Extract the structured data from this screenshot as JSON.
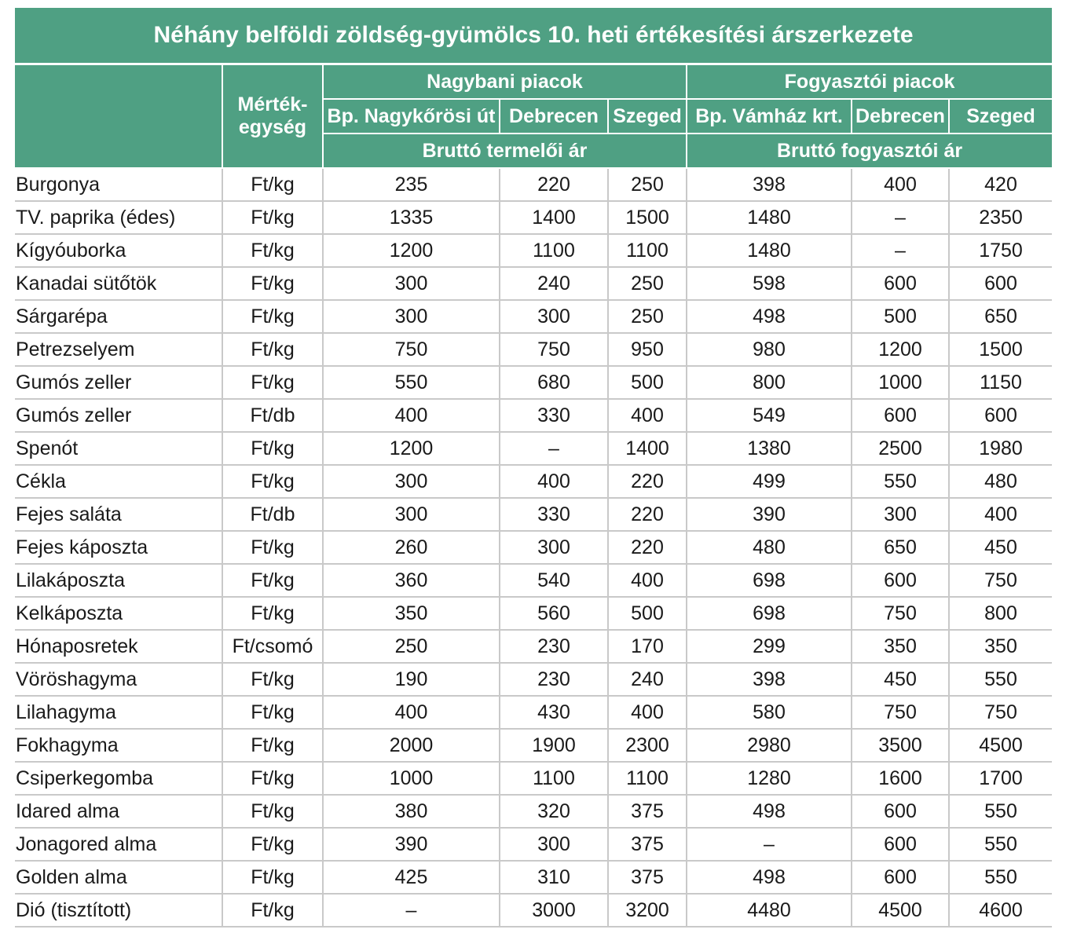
{
  "title": "Néhány belföldi zöldség-gyümölcs 10. heti értékesítési árszerkezete",
  "headers": {
    "unit_col": "Mérték-egység",
    "wholesale_group": "Nagybani piacok",
    "consumer_group": "Fogyasztói piacok",
    "wholesale_markets": [
      "Bp. Nagykőrösi út",
      "Debrecen",
      "Szeged"
    ],
    "consumer_markets": [
      "Bp. Vámház krt.",
      "Debrecen",
      "Szeged"
    ],
    "wholesale_price": "Bruttó termelői ár",
    "consumer_price": "Bruttó fogyasztói ár"
  },
  "rows": [
    {
      "name": "Burgonya",
      "unit": "Ft/kg",
      "v": [
        "235",
        "220",
        "250",
        "398",
        "400",
        "420"
      ]
    },
    {
      "name": "TV. paprika (édes)",
      "unit": "Ft/kg",
      "v": [
        "1335",
        "1400",
        "1500",
        "1480",
        "–",
        "2350"
      ]
    },
    {
      "name": "Kígyóuborka",
      "unit": "Ft/kg",
      "v": [
        "1200",
        "1100",
        "1100",
        "1480",
        "–",
        "1750"
      ]
    },
    {
      "name": "Kanadai sütőtök",
      "unit": "Ft/kg",
      "v": [
        "300",
        "240",
        "250",
        "598",
        "600",
        "600"
      ]
    },
    {
      "name": "Sárgarépa",
      "unit": "Ft/kg",
      "v": [
        "300",
        "300",
        "250",
        "498",
        "500",
        "650"
      ]
    },
    {
      "name": "Petrezselyem",
      "unit": "Ft/kg",
      "v": [
        "750",
        "750",
        "950",
        "980",
        "1200",
        "1500"
      ]
    },
    {
      "name": "Gumós zeller",
      "unit": "Ft/kg",
      "v": [
        "550",
        "680",
        "500",
        "800",
        "1000",
        "1150"
      ]
    },
    {
      "name": "Gumós zeller",
      "unit": "Ft/db",
      "v": [
        "400",
        "330",
        "400",
        "549",
        "600",
        "600"
      ]
    },
    {
      "name": "Spenót",
      "unit": "Ft/kg",
      "v": [
        "1200",
        "–",
        "1400",
        "1380",
        "2500",
        "1980"
      ]
    },
    {
      "name": "Cékla",
      "unit": "Ft/kg",
      "v": [
        "300",
        "400",
        "220",
        "499",
        "550",
        "480"
      ]
    },
    {
      "name": "Fejes saláta",
      "unit": "Ft/db",
      "v": [
        "300",
        "330",
        "220",
        "390",
        "300",
        "400"
      ]
    },
    {
      "name": "Fejes káposzta",
      "unit": "Ft/kg",
      "v": [
        "260",
        "300",
        "220",
        "480",
        "650",
        "450"
      ]
    },
    {
      "name": "Lilakáposzta",
      "unit": "Ft/kg",
      "v": [
        "360",
        "540",
        "400",
        "698",
        "600",
        "750"
      ]
    },
    {
      "name": "Kelkáposzta",
      "unit": "Ft/kg",
      "v": [
        "350",
        "560",
        "500",
        "698",
        "750",
        "800"
      ]
    },
    {
      "name": "Hónaposretek",
      "unit": "Ft/csomó",
      "v": [
        "250",
        "230",
        "170",
        "299",
        "350",
        "350"
      ]
    },
    {
      "name": "Vöröshagyma",
      "unit": "Ft/kg",
      "v": [
        "190",
        "230",
        "240",
        "398",
        "450",
        "550"
      ]
    },
    {
      "name": "Lilahagyma",
      "unit": "Ft/kg",
      "v": [
        "400",
        "430",
        "400",
        "580",
        "750",
        "750"
      ]
    },
    {
      "name": "Fokhagyma",
      "unit": "Ft/kg",
      "v": [
        "2000",
        "1900",
        "2300",
        "2980",
        "3500",
        "4500"
      ]
    },
    {
      "name": "Csiperkegomba",
      "unit": "Ft/kg",
      "v": [
        "1000",
        "1100",
        "1100",
        "1280",
        "1600",
        "1700"
      ]
    },
    {
      "name": "Idared alma",
      "unit": "Ft/kg",
      "v": [
        "380",
        "320",
        "375",
        "498",
        "600",
        "550"
      ]
    },
    {
      "name": "Jonagored alma",
      "unit": "Ft/kg",
      "v": [
        "390",
        "300",
        "375",
        "–",
        "600",
        "550"
      ]
    },
    {
      "name": "Golden alma",
      "unit": "Ft/kg",
      "v": [
        "425",
        "310",
        "375",
        "498",
        "600",
        "550"
      ]
    },
    {
      "name": "Dió (tisztított)",
      "unit": "Ft/kg",
      "v": [
        "–",
        "3000",
        "3200",
        "4480",
        "4500",
        "4600"
      ]
    }
  ],
  "colors": {
    "header_bg": "#4fa083",
    "header_text": "#ffffff",
    "grid": "#c9c9c9"
  }
}
